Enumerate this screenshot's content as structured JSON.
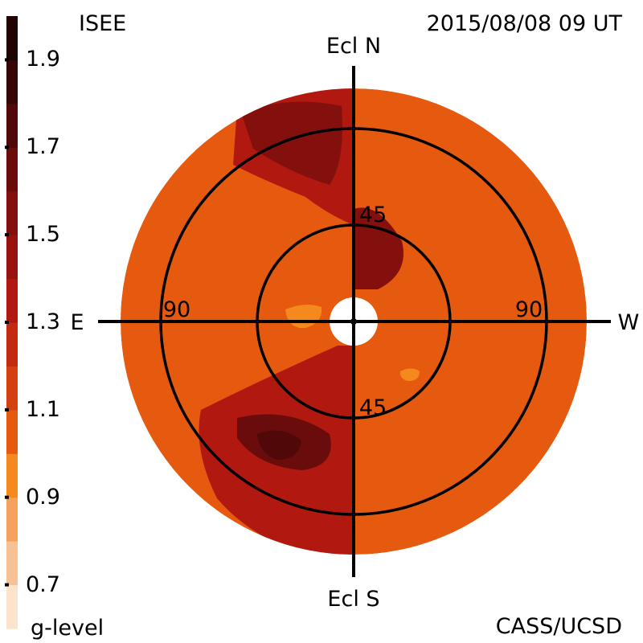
{
  "header": {
    "source": "ISEE",
    "timestamp": "2015/08/08 09 UT",
    "credit": "CASS/UCSD"
  },
  "colorbar": {
    "title": "g-level",
    "ticks": [
      "1.9",
      "1.7",
      "1.5",
      "1.3",
      "1.1",
      "0.9",
      "0.7"
    ],
    "tick_values": [
      1.9,
      1.7,
      1.5,
      1.3,
      1.1,
      0.9,
      0.7
    ],
    "range": [
      0.6,
      2.0
    ],
    "colors": [
      "#fbe3cc",
      "#f8c193",
      "#f6a25f",
      "#f48a1e",
      "#e65a10",
      "#d44010",
      "#c42a10",
      "#b01810",
      "#9a120f",
      "#84100e",
      "#6a0c0c",
      "#500808",
      "#360505",
      "#200303"
    ]
  },
  "chart_data": {
    "type": "heatmap",
    "title": "",
    "projection": "polar sky map centred on Sun",
    "axes": {
      "top": "Ecl N",
      "bottom": "Ecl S",
      "left": "E",
      "right": "W"
    },
    "rings": [
      {
        "elongation": 45,
        "label": "45"
      },
      {
        "elongation": 90,
        "label": "90"
      }
    ],
    "background_level": 1.05,
    "features": [
      {
        "name": "north-east enhancement",
        "level": 1.35
      },
      {
        "name": "north-east core",
        "level": 1.55
      },
      {
        "name": "near-sun north",
        "level": 1.5
      },
      {
        "name": "south enhancement",
        "level": 1.35
      },
      {
        "name": "south-east core",
        "level": 1.65
      },
      {
        "name": "south-east peak",
        "level": 1.75
      },
      {
        "name": "east low patch",
        "level": 0.95
      },
      {
        "name": "south-west spot",
        "level": 0.9
      }
    ]
  }
}
